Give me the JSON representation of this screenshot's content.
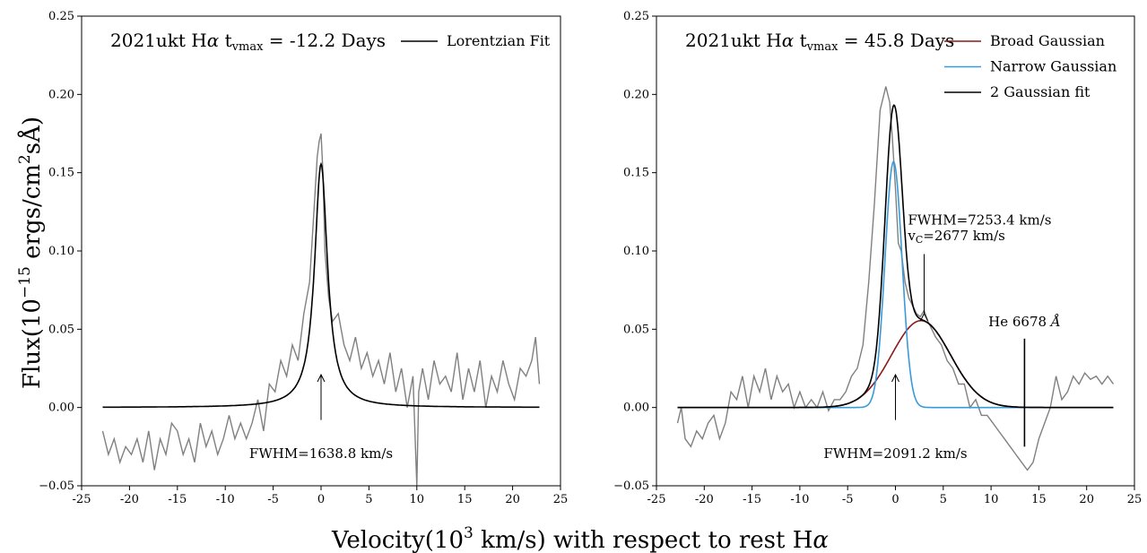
{
  "figure": {
    "ylabel_prefix": "Flux(10",
    "ylabel_exp": "−15",
    "ylabel_suffix": " ergs/cm",
    "ylabel_sq": "2",
    "ylabel_end": "sÅ)",
    "xlabel_prefix": "Velocity(10",
    "xlabel_exp": "3",
    "xlabel_suffix": " km/s) with respect to rest H",
    "xlabel_alpha": "α"
  },
  "chart_data": [
    {
      "type": "line",
      "title_prefix": "2021ukt H",
      "title_alpha": "α",
      "title_t": " t",
      "title_sub": "vmax",
      "title_value": " = -12.2 Days",
      "xlim": [
        -25,
        25
      ],
      "ylim": [
        -0.05,
        0.25
      ],
      "xticks": [
        "-25",
        "-20",
        "-15",
        "-10",
        "-5",
        "0",
        "5",
        "10",
        "15",
        "20",
        "25"
      ],
      "yticks": [
        "−0.05",
        "0.00",
        "0.05",
        "0.10",
        "0.15",
        "0.20",
        "0.25"
      ],
      "legend": [
        {
          "label": "Lorentzian Fit",
          "color": "#000000"
        }
      ],
      "annotations": [
        {
          "text": "FWHM=1638.8 km/s",
          "x": 0,
          "y": 0.02
        }
      ],
      "series": [
        {
          "kind": "observed",
          "color": "#808080",
          "x": [
            -22.8,
            -22.2,
            -21.6,
            -21.0,
            -20.4,
            -19.8,
            -19.2,
            -18.6,
            -18.0,
            -17.4,
            -16.8,
            -16.2,
            -15.6,
            -15.0,
            -14.4,
            -13.8,
            -13.2,
            -12.6,
            -12.0,
            -11.4,
            -10.8,
            -10.2,
            -9.6,
            -9.0,
            -8.4,
            -7.8,
            -7.2,
            -6.6,
            -6.0,
            -5.4,
            -4.8,
            -4.2,
            -3.6,
            -3.0,
            -2.4,
            -1.8,
            -1.2,
            -0.8,
            -0.4,
            -0.2,
            0.0,
            0.2,
            0.4,
            0.8,
            1.2,
            1.8,
            2.4,
            3.0,
            3.6,
            4.2,
            4.8,
            5.4,
            6.0,
            6.6,
            7.2,
            7.8,
            8.4,
            9.0,
            9.6,
            10.0,
            10.2,
            10.6,
            11.2,
            11.8,
            12.4,
            13.0,
            13.6,
            14.2,
            14.8,
            15.4,
            16.0,
            16.6,
            17.2,
            17.8,
            18.4,
            19.0,
            19.6,
            20.2,
            20.8,
            21.4,
            22.0,
            22.4,
            22.8
          ],
          "y": [
            -0.015,
            -0.03,
            -0.02,
            -0.035,
            -0.025,
            -0.03,
            -0.02,
            -0.035,
            -0.015,
            -0.04,
            -0.02,
            -0.03,
            -0.01,
            -0.015,
            -0.03,
            -0.02,
            -0.035,
            -0.01,
            -0.025,
            -0.015,
            -0.03,
            -0.02,
            -0.005,
            -0.02,
            -0.01,
            -0.02,
            -0.01,
            0.005,
            -0.015,
            0.015,
            0.01,
            0.03,
            0.02,
            0.04,
            0.03,
            0.06,
            0.08,
            0.12,
            0.16,
            0.17,
            0.175,
            0.15,
            0.1,
            0.07,
            0.055,
            0.06,
            0.04,
            0.03,
            0.045,
            0.025,
            0.035,
            0.02,
            0.03,
            0.015,
            0.035,
            0.01,
            0.025,
            0.0,
            0.02,
            -0.05,
            0.01,
            0.025,
            0.005,
            0.03,
            0.015,
            0.02,
            0.01,
            0.035,
            0.005,
            0.025,
            0.01,
            0.03,
            0.0,
            0.02,
            0.01,
            0.03,
            0.015,
            0.005,
            0.025,
            0.02,
            0.03,
            0.045,
            0.015
          ]
        },
        {
          "kind": "lorentzian",
          "name": "Lorentzian Fit",
          "color": "#000000",
          "amplitude": 0.1555,
          "center": 0.0,
          "fwhm": 1.6388
        }
      ]
    },
    {
      "type": "line",
      "title_prefix": "2021ukt H",
      "title_alpha": "α",
      "title_t": " t",
      "title_sub": "vmax",
      "title_value": " = 45.8 Days",
      "xlim": [
        -25,
        25
      ],
      "ylim": [
        -0.05,
        0.25
      ],
      "xticks": [
        "-25",
        "-20",
        "-15",
        "-10",
        "-5",
        "0",
        "5",
        "10",
        "15",
        "20",
        "25"
      ],
      "yticks": [
        "−0.05",
        "0.00",
        "0.05",
        "0.10",
        "0.15",
        "0.20",
        "0.25"
      ],
      "legend": [
        {
          "label": "Broad Gaussian",
          "color": "#8b1a1a"
        },
        {
          "label": "Narrow Gaussian",
          "color": "#3a9ad9"
        },
        {
          "label": "2 Gaussian fit",
          "color": "#000000"
        }
      ],
      "annotations": [
        {
          "text": "FWHM=7253.4 km/s",
          "x": 1.3,
          "y": 0.117
        },
        {
          "text": "v",
          "sub": "C",
          "text_after": "=2677 km/s",
          "x": 1.3,
          "y": 0.107
        },
        {
          "text": "FWHM=2091.2 km/s",
          "x": 0,
          "y": -0.028
        },
        {
          "text": "He 6678 ",
          "italic": "Å",
          "x": 13.5,
          "y": 0.052
        }
      ],
      "vline_x": 13.5,
      "series": [
        {
          "kind": "observed",
          "color": "#808080",
          "x": [
            -22.8,
            -22.4,
            -22.0,
            -21.4,
            -20.8,
            -20.2,
            -19.6,
            -19.0,
            -18.4,
            -17.8,
            -17.2,
            -16.6,
            -16.0,
            -15.4,
            -14.8,
            -14.2,
            -13.6,
            -13.0,
            -12.4,
            -11.8,
            -11.2,
            -10.6,
            -10.0,
            -9.4,
            -8.8,
            -8.2,
            -7.6,
            -7.0,
            -6.4,
            -5.8,
            -5.2,
            -4.6,
            -4.0,
            -3.4,
            -2.8,
            -2.2,
            -1.6,
            -1.0,
            -0.6,
            -0.3,
            0.0,
            0.3,
            0.6,
            1.0,
            1.4,
            1.8,
            2.2,
            2.6,
            3.0,
            3.4,
            3.8,
            4.2,
            4.8,
            5.4,
            6.0,
            6.6,
            7.2,
            7.8,
            8.4,
            9.0,
            9.6,
            10.2,
            10.8,
            11.4,
            12.0,
            12.6,
            13.2,
            13.8,
            14.4,
            15.0,
            15.6,
            16.2,
            16.8,
            17.4,
            18.0,
            18.6,
            19.2,
            19.8,
            20.4,
            21.0,
            21.6,
            22.2,
            22.8
          ],
          "y": [
            -0.01,
            0.0,
            -0.02,
            -0.025,
            -0.015,
            -0.02,
            -0.01,
            -0.005,
            -0.02,
            -0.01,
            0.01,
            0.005,
            0.02,
            0.0,
            0.02,
            0.01,
            0.025,
            0.005,
            0.02,
            0.01,
            0.015,
            0.0,
            0.01,
            0.0,
            0.005,
            0.0,
            0.01,
            -0.002,
            0.005,
            0.005,
            0.01,
            0.02,
            0.025,
            0.04,
            0.08,
            0.13,
            0.19,
            0.205,
            0.195,
            0.17,
            0.14,
            0.105,
            0.1,
            0.08,
            0.07,
            0.065,
            0.06,
            0.058,
            0.062,
            0.055,
            0.05,
            0.045,
            0.04,
            0.03,
            0.025,
            0.015,
            0.015,
            0.0,
            0.005,
            -0.005,
            -0.005,
            -0.01,
            -0.015,
            -0.02,
            -0.025,
            -0.03,
            -0.035,
            -0.04,
            -0.035,
            -0.02,
            -0.01,
            0.0,
            0.02,
            0.005,
            0.01,
            0.02,
            0.015,
            0.022,
            0.018,
            0.02,
            0.015,
            0.02,
            0.015
          ]
        },
        {
          "kind": "gaussian",
          "name": "Broad Gaussian",
          "color": "#8b1a1a",
          "amplitude": 0.0555,
          "center": 2.677,
          "fwhm": 7.2534
        },
        {
          "kind": "gaussian",
          "name": "Narrow Gaussian",
          "color": "#3a9ad9",
          "amplitude": 0.157,
          "center": -0.2,
          "fwhm": 2.0912
        },
        {
          "kind": "sum",
          "name": "2 Gaussian fit",
          "color": "#000000"
        }
      ]
    }
  ]
}
